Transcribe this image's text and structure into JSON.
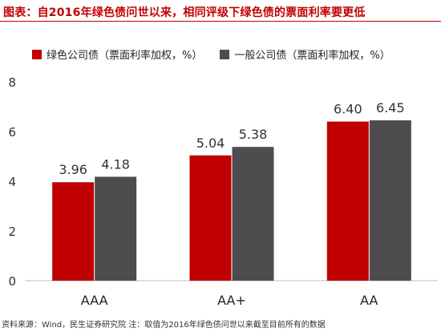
{
  "title": "图表：自2016年绿色债问世以来，相同评级下绿色债的票面利率要更低",
  "chart_data": {
    "type": "bar",
    "categories": [
      "AAA",
      "AA+",
      "AA"
    ],
    "series": [
      {
        "name": "绿色公司债（票面利率加权，%）",
        "values": [
          3.96,
          5.04,
          6.4
        ],
        "labels": [
          "3.96",
          "5.04",
          "6.40"
        ],
        "color": "#c00000"
      },
      {
        "name": "一般公司债（票面利率加权，%）",
        "values": [
          4.18,
          5.38,
          6.45
        ],
        "labels": [
          "4.18",
          "5.38",
          "6.45"
        ],
        "color": "#4d4d4f"
      }
    ],
    "yticks": [
      0,
      2,
      4,
      6,
      8
    ],
    "ylim": [
      0,
      8
    ],
    "grid": false
  },
  "source": "资料来源：Wind，民生证券研究院    注：取值为2016年绿色债问世以来截至目前所有的数据"
}
